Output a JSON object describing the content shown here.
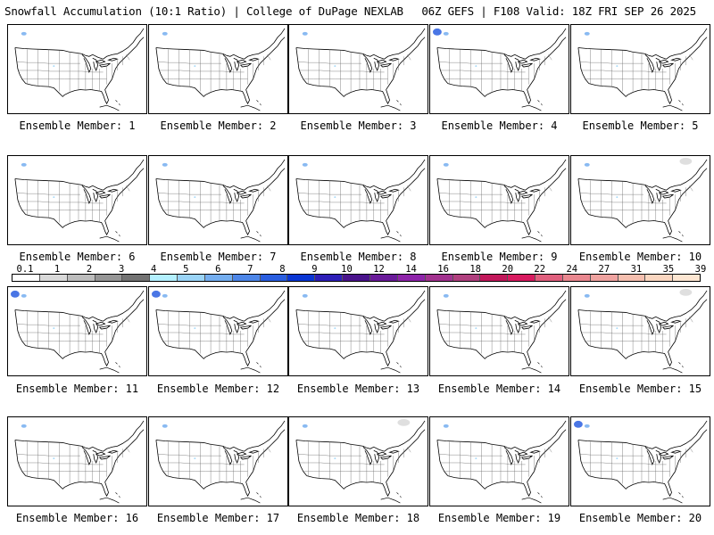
{
  "header": {
    "title_left": "Snowfall Accumulation (10:1 Ratio) | College of DuPage NEXLAB",
    "title_right": "06Z GEFS | F108 Valid: 18Z FRI SEP 26 2025"
  },
  "panels": [
    {
      "label": "Ensemble Member: 1"
    },
    {
      "label": "Ensemble Member: 2"
    },
    {
      "label": "Ensemble Member: 3"
    },
    {
      "label": "Ensemble Member: 4"
    },
    {
      "label": "Ensemble Member: 5"
    },
    {
      "label": "Ensemble Member: 6"
    },
    {
      "label": "Ensemble Member: 7"
    },
    {
      "label": "Ensemble Member: 8"
    },
    {
      "label": "Ensemble Member: 9"
    },
    {
      "label": "Ensemble Member: 10"
    },
    {
      "label": "Ensemble Member: 11"
    },
    {
      "label": "Ensemble Member: 12"
    },
    {
      "label": "Ensemble Member: 13"
    },
    {
      "label": "Ensemble Member: 14"
    },
    {
      "label": "Ensemble Member: 15"
    },
    {
      "label": "Ensemble Member: 16"
    },
    {
      "label": "Ensemble Member: 17"
    },
    {
      "label": "Ensemble Member: 18"
    },
    {
      "label": "Ensemble Member: 19"
    },
    {
      "label": "Ensemble Member: 20"
    }
  ],
  "colorbar": {
    "labels": [
      "0.1",
      "1",
      "2",
      "3",
      "4",
      "5",
      "6",
      "7",
      "8",
      "9",
      "10",
      "12",
      "14",
      "16",
      "18",
      "20",
      "22",
      "24",
      "27",
      "31",
      "35",
      "39"
    ],
    "colors": [
      "#ffffff",
      "#d9d9d9",
      "#bdbdbd",
      "#969696",
      "#737373",
      "#b3f0ff",
      "#9ad4f7",
      "#74aef0",
      "#4d86e8",
      "#2a5ee0",
      "#0a36d4",
      "#2e1fb8",
      "#4a148c",
      "#6a1b9a",
      "#8e24aa",
      "#a2328f",
      "#b0407f",
      "#c2185b",
      "#d81b60",
      "#e0607e",
      "#e9878f",
      "#efa3a0",
      "#f5bfaf",
      "#fad6c0",
      "#fde6d2"
    ]
  }
}
